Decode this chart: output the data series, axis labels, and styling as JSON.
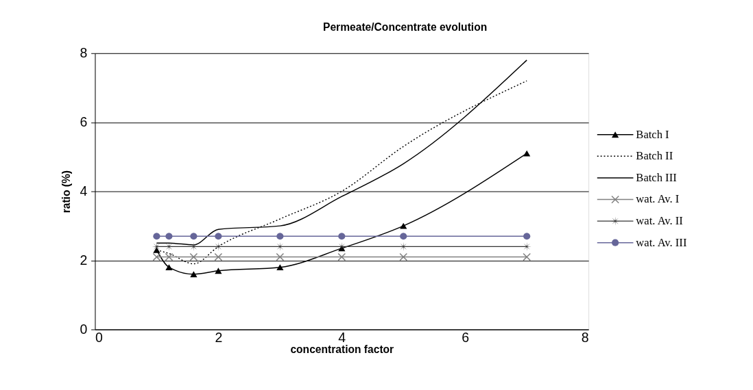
{
  "chart_data": {
    "type": "line",
    "title": "Permeate/Concentrate evolution",
    "xlabel": "concentration factor",
    "ylabel": "ratio (%)",
    "x": [
      1,
      1.2,
      1.6,
      2,
      3,
      4,
      5,
      7
    ],
    "series": [
      {
        "name": "Batch I",
        "color": "#000000",
        "marker": "triangle",
        "line_style": "solid",
        "values": [
          2.3,
          1.8,
          1.6,
          1.7,
          1.8,
          2.35,
          3.0,
          5.1
        ]
      },
      {
        "name": "Batch II",
        "color": "#000000",
        "marker": "none",
        "line_style": "dotted",
        "values": [
          2.3,
          2.2,
          1.9,
          2.4,
          3.2,
          4.0,
          5.3,
          7.2
        ]
      },
      {
        "name": "Batch III",
        "color": "#000000",
        "marker": "none",
        "line_style": "solid",
        "values": [
          2.5,
          2.5,
          2.45,
          2.9,
          3.0,
          3.85,
          4.8,
          7.8
        ]
      },
      {
        "name": "wat. Av. I",
        "color": "#808080",
        "marker": "cross",
        "line_style": "solid",
        "values": [
          2.1,
          2.1,
          2.1,
          2.1,
          2.1,
          2.1,
          2.1,
          2.1
        ]
      },
      {
        "name": "wat. Av. II",
        "color": "#333333",
        "marker": "star",
        "line_style": "solid",
        "values": [
          2.4,
          2.4,
          2.4,
          2.4,
          2.4,
          2.4,
          2.4,
          2.4
        ]
      },
      {
        "name": "wat. Av. III",
        "color": "#666699",
        "marker": "circle",
        "line_style": "solid",
        "values": [
          2.7,
          2.7,
          2.7,
          2.7,
          2.7,
          2.7,
          2.7,
          2.7
        ]
      }
    ],
    "xlim": [
      0,
      8
    ],
    "xticks": [
      0,
      2,
      4,
      6,
      8
    ],
    "ylim": [
      0,
      8
    ],
    "yticks": [
      0,
      2,
      4,
      6,
      8
    ],
    "grid": "y",
    "legend": "right"
  }
}
